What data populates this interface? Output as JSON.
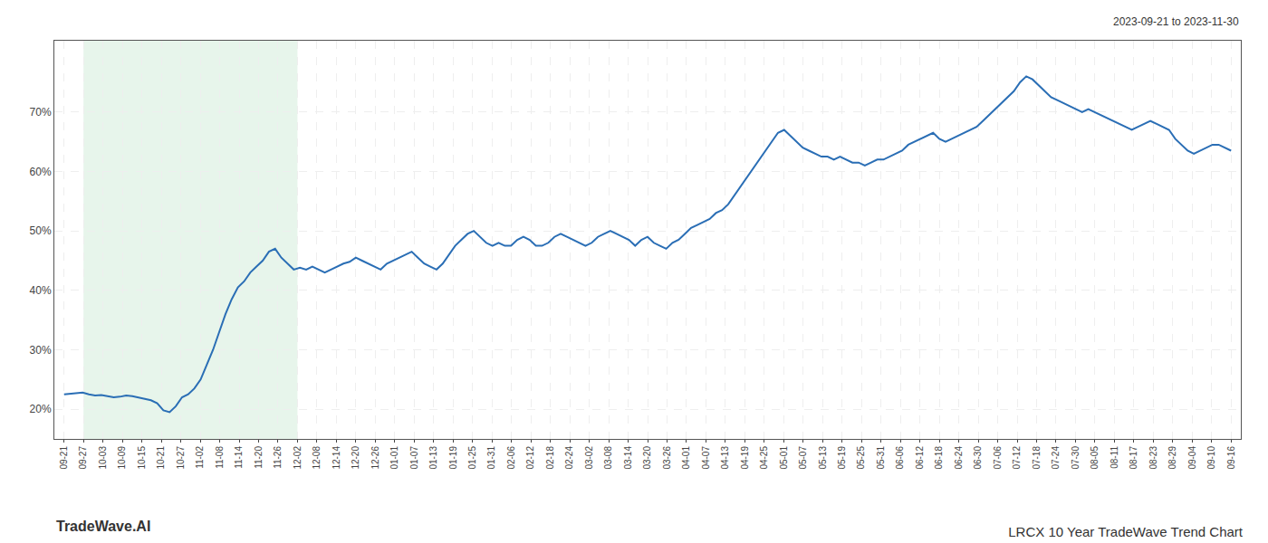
{
  "chart_data": {
    "type": "line",
    "title": "LRCX 10 Year TradeWave Trend Chart",
    "subtitle": "2023-09-21 to 2023-11-30",
    "annotations": [
      "TradeWave.AI"
    ],
    "color": "#2a6eb5",
    "grid": true,
    "shaded": {
      "range": [
        1,
        12
      ],
      "color": "#d4edda"
    },
    "xlim": [
      -0.5,
      60.5
    ],
    "xticks": [
      {
        "value": 0,
        "label": "09-21"
      },
      {
        "value": 1,
        "label": "09-27"
      },
      {
        "value": 2,
        "label": "10-03"
      },
      {
        "value": 3,
        "label": "10-09"
      },
      {
        "value": 4,
        "label": "10-15"
      },
      {
        "value": 5,
        "label": "10-21"
      },
      {
        "value": 6,
        "label": "10-27"
      },
      {
        "value": 7,
        "label": "11-02"
      },
      {
        "value": 8,
        "label": "11-08"
      },
      {
        "value": 9,
        "label": "11-14"
      },
      {
        "value": 10,
        "label": "11-20"
      },
      {
        "value": 11,
        "label": "11-26"
      },
      {
        "value": 12,
        "label": "12-02"
      },
      {
        "value": 13,
        "label": "12-08"
      },
      {
        "value": 14,
        "label": "12-14"
      },
      {
        "value": 15,
        "label": "12-20"
      },
      {
        "value": 16,
        "label": "12-26"
      },
      {
        "value": 17,
        "label": "01-01"
      },
      {
        "value": 18,
        "label": "01-07"
      },
      {
        "value": 19,
        "label": "01-13"
      },
      {
        "value": 20,
        "label": "01-19"
      },
      {
        "value": 21,
        "label": "01-25"
      },
      {
        "value": 22,
        "label": "01-31"
      },
      {
        "value": 23,
        "label": "02-06"
      },
      {
        "value": 24,
        "label": "02-12"
      },
      {
        "value": 25,
        "label": "02-18"
      },
      {
        "value": 26,
        "label": "02-24"
      },
      {
        "value": 27,
        "label": "03-02"
      },
      {
        "value": 28,
        "label": "03-08"
      },
      {
        "value": 29,
        "label": "03-14"
      },
      {
        "value": 30,
        "label": "03-20"
      },
      {
        "value": 31,
        "label": "03-26"
      },
      {
        "value": 32,
        "label": "04-01"
      },
      {
        "value": 33,
        "label": "04-07"
      },
      {
        "value": 34,
        "label": "04-13"
      },
      {
        "value": 35,
        "label": "04-19"
      },
      {
        "value": 36,
        "label": "04-25"
      },
      {
        "value": 37,
        "label": "05-01"
      },
      {
        "value": 38,
        "label": "05-07"
      },
      {
        "value": 39,
        "label": "05-13"
      },
      {
        "value": 40,
        "label": "05-19"
      },
      {
        "value": 41,
        "label": "05-25"
      },
      {
        "value": 42,
        "label": "05-31"
      },
      {
        "value": 43,
        "label": "06-06"
      },
      {
        "value": 44,
        "label": "06-12"
      },
      {
        "value": 45,
        "label": "06-18"
      },
      {
        "value": 46,
        "label": "06-24"
      },
      {
        "value": 47,
        "label": "06-30"
      },
      {
        "value": 48,
        "label": "07-06"
      },
      {
        "value": 49,
        "label": "07-12"
      },
      {
        "value": 50,
        "label": "07-18"
      },
      {
        "value": 51,
        "label": "07-24"
      },
      {
        "value": 52,
        "label": "07-30"
      },
      {
        "value": 53,
        "label": "08-05"
      },
      {
        "value": 54,
        "label": "08-11"
      },
      {
        "value": 55,
        "label": "08-17"
      },
      {
        "value": 56,
        "label": "08-23"
      },
      {
        "value": 57,
        "label": "08-29"
      },
      {
        "value": 58,
        "label": "09-04"
      },
      {
        "value": 59,
        "label": "09-10"
      },
      {
        "value": 60,
        "label": "09-16"
      }
    ],
    "ylim": [
      15,
      82
    ],
    "yticks": [
      {
        "value": 20,
        "label": "20%"
      },
      {
        "value": 30,
        "label": "30%"
      },
      {
        "value": 40,
        "label": "40%"
      },
      {
        "value": 50,
        "label": "50%"
      },
      {
        "value": 60,
        "label": "60%"
      },
      {
        "value": 70,
        "label": "70%"
      }
    ],
    "values": [
      22.5,
      22.6,
      22.7,
      22.8,
      22.5,
      22.3,
      22.4,
      22.2,
      22.0,
      22.1,
      22.3,
      22.2,
      22.0,
      21.8,
      21.5,
      21.0,
      19.8,
      19.5,
      20.5,
      22.0,
      22.5,
      23.5,
      25.0,
      27.5,
      30.0,
      33.0,
      36.0,
      38.5,
      40.5,
      41.5,
      43.0,
      44.0,
      45.0,
      46.5,
      47.0,
      45.5,
      44.5,
      43.5,
      43.8,
      43.5,
      44.0,
      43.5,
      43.0,
      43.5,
      44.0,
      44.5,
      44.8,
      45.5,
      45.0,
      44.5,
      44.0,
      43.5,
      44.5,
      45.0,
      45.5,
      46.0,
      46.5,
      45.5,
      44.5,
      44.0,
      43.5,
      44.5,
      46.0,
      47.5,
      48.5,
      49.5,
      50.0,
      49.0,
      48.0,
      47.5,
      48.0,
      47.5,
      47.5,
      48.5,
      49.0,
      48.5,
      47.5,
      47.5,
      48.0,
      49.0,
      49.5,
      49.0,
      48.5,
      48.0,
      47.5,
      48.0,
      49.0,
      49.5,
      50.0,
      49.5,
      49.0,
      48.5,
      47.5,
      48.5,
      49.0,
      48.0,
      47.5,
      47.0,
      48.0,
      48.5,
      49.5,
      50.5,
      51.0,
      51.5,
      52.0,
      53.0,
      53.5,
      54.5,
      56.0,
      57.5,
      59.0,
      60.5,
      62.0,
      63.5,
      65.0,
      66.5,
      67.0,
      66.0,
      65.0,
      64.0,
      63.5,
      63.0,
      62.5,
      62.5,
      62.0,
      62.5,
      62.0,
      61.5,
      61.5,
      61.0,
      61.5,
      62.0,
      62.0,
      62.5,
      63.0,
      63.5,
      64.5,
      65.0,
      65.5,
      66.0,
      66.5,
      65.5,
      65.0,
      65.5,
      66.0,
      66.5,
      67.0,
      67.5,
      68.5,
      69.5,
      70.5,
      71.5,
      72.5,
      73.5,
      75.0,
      76.0,
      75.5,
      74.5,
      73.5,
      72.5,
      72.0,
      71.5,
      71.0,
      70.5,
      70.0,
      70.5,
      70.0,
      69.5,
      69.0,
      68.5,
      68.0,
      67.5,
      67.0,
      67.5,
      68.0,
      68.5,
      68.0,
      67.5,
      67.0,
      65.5,
      64.5,
      63.5,
      63.0,
      63.5,
      64.0,
      64.5,
      64.5,
      64.0,
      63.5
    ]
  }
}
